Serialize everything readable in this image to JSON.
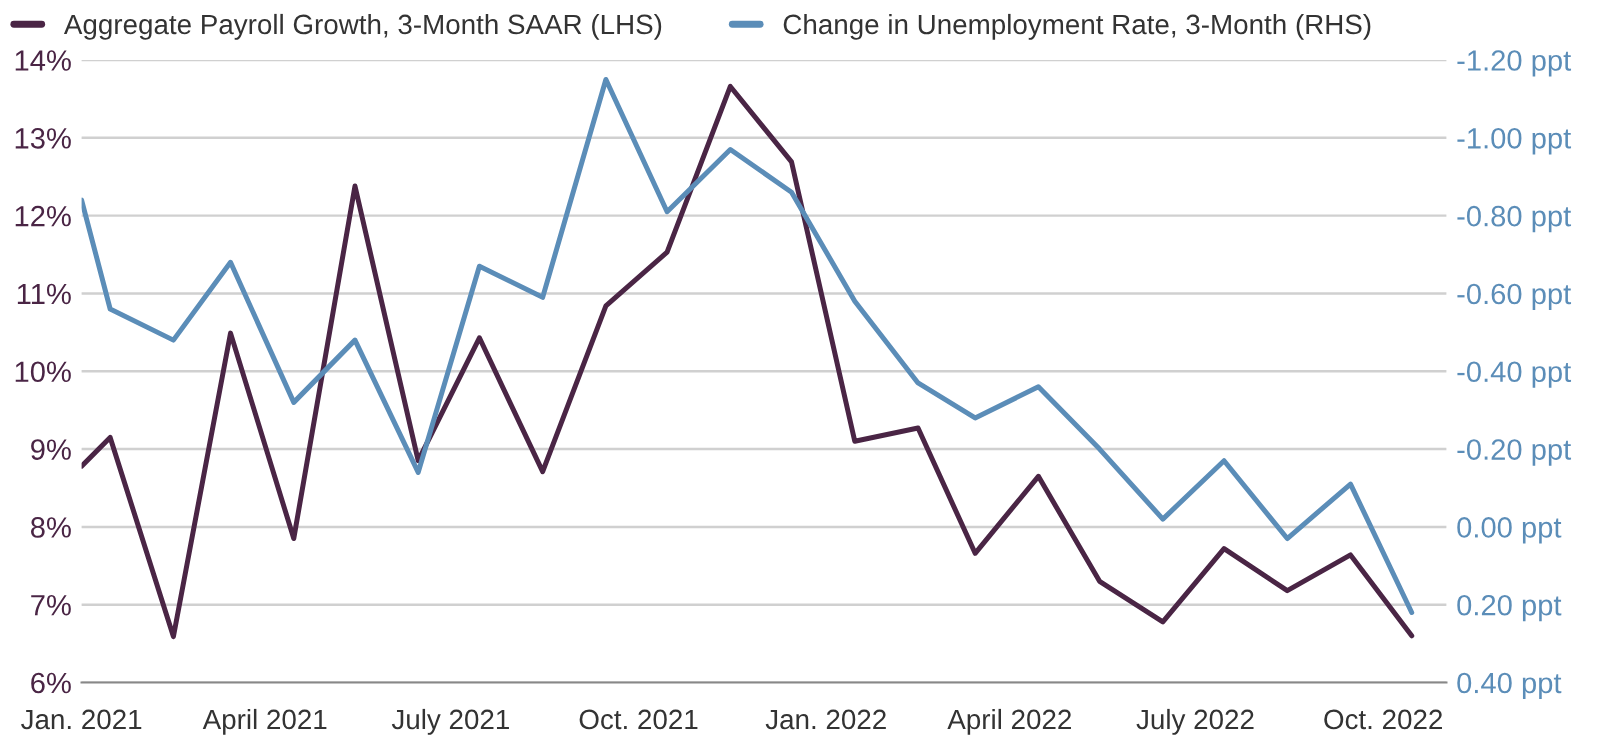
{
  "chart_data": {
    "type": "line",
    "x": [
      "2021-01-01",
      "2021-01-15",
      "2021-02-15",
      "2021-03-15",
      "2021-04-15",
      "2021-05-15",
      "2021-06-15",
      "2021-07-15",
      "2021-08-15",
      "2021-09-15",
      "2021-10-15",
      "2021-11-15",
      "2021-12-15",
      "2022-01-15",
      "2022-02-15",
      "2022-03-15",
      "2022-04-15",
      "2022-05-15",
      "2022-06-15",
      "2022-07-15",
      "2022-08-15",
      "2022-09-15",
      "2022-10-15"
    ],
    "series": [
      {
        "name": "Aggregate Payroll Growth, 3-Month SAAR (LHS)",
        "color": "#4a2545",
        "values": [
          8.78,
          9.15,
          6.59,
          10.49,
          7.85,
          12.38,
          8.85,
          10.43,
          8.71,
          10.84,
          11.53,
          13.66,
          12.69,
          9.1,
          9.27,
          7.66,
          8.65,
          7.3,
          6.78,
          7.72,
          7.18,
          7.64,
          6.6
        ]
      },
      {
        "name": "Change in Unemployment Rate, 3-Month (RHS)",
        "color": "#5b8db8",
        "axis": "y2",
        "values": [
          -0.84,
          -0.56,
          -0.48,
          -0.68,
          -0.32,
          -0.48,
          -0.14,
          -0.67,
          -0.59,
          -1.15,
          -0.81,
          -0.97,
          -0.86,
          -0.58,
          -0.37,
          -0.28,
          -0.36,
          -0.2,
          -0.02,
          -0.17,
          0.03,
          -0.11,
          0.22
        ]
      }
    ],
    "xlim": [
      "2021-01-01",
      "2022-11-01"
    ],
    "xticks": [
      {
        "value": "2021-01-01",
        "label": "Jan. 2021"
      },
      {
        "value": "2021-04-01",
        "label": "April 2021"
      },
      {
        "value": "2021-07-01",
        "label": "July 2021"
      },
      {
        "value": "2021-10-01",
        "label": "Oct. 2021"
      },
      {
        "value": "2022-01-01",
        "label": "Jan. 2022"
      },
      {
        "value": "2022-04-01",
        "label": "April 2022"
      },
      {
        "value": "2022-07-01",
        "label": "July 2022"
      },
      {
        "value": "2022-10-01",
        "label": "Oct. 2022"
      }
    ],
    "ylim": [
      6,
      14
    ],
    "yticks": [
      {
        "value": 6,
        "label": "6%"
      },
      {
        "value": 7,
        "label": "7%"
      },
      {
        "value": 8,
        "label": "8%"
      },
      {
        "value": 9,
        "label": "9%"
      },
      {
        "value": 10,
        "label": "10%"
      },
      {
        "value": 11,
        "label": "11%"
      },
      {
        "value": 12,
        "label": "12%"
      },
      {
        "value": 13,
        "label": "13%"
      },
      {
        "value": 14,
        "label": "14%"
      }
    ],
    "y2lim": [
      0.4,
      -1.2
    ],
    "y2ticks": [
      {
        "value": -1.2,
        "label": "-1.20 ppt"
      },
      {
        "value": -1.0,
        "label": "-1.00 ppt"
      },
      {
        "value": -0.8,
        "label": "-0.80 ppt"
      },
      {
        "value": -0.6,
        "label": "-0.60 ppt"
      },
      {
        "value": -0.4,
        "label": "-0.40 ppt"
      },
      {
        "value": -0.2,
        "label": "-0.20 ppt"
      },
      {
        "value": 0.0,
        "label": "0.00 ppt"
      },
      {
        "value": 0.2,
        "label": "0.20 ppt"
      },
      {
        "value": 0.4,
        "label": "0.40 ppt"
      }
    ],
    "grid": "y",
    "legend": "top left",
    "marker": "none",
    "line_style": "solid"
  }
}
